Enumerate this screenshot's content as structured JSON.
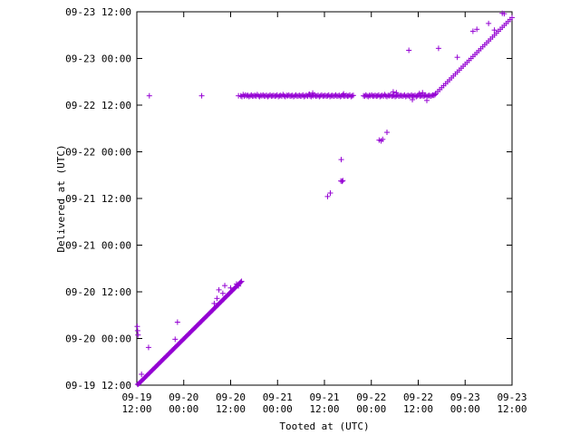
{
  "chart_data": {
    "type": "scatter",
    "title": "",
    "xlabel": "Tooted at (UTC)",
    "ylabel": "Delivered at (UTC)",
    "x_unit": "hours since 09-19 12:00 UTC",
    "y_unit": "hours since 09-19 12:00 UTC",
    "xlim": [
      0,
      96
    ],
    "ylim": [
      0,
      96
    ],
    "grid": false,
    "legend": "none",
    "marker": "+",
    "color": "#9400d3",
    "x_ticks": [
      {
        "value": 0,
        "line1": "09-19",
        "line2": "12:00"
      },
      {
        "value": 12,
        "line1": "09-20",
        "line2": "00:00"
      },
      {
        "value": 24,
        "line1": "09-20",
        "line2": "12:00"
      },
      {
        "value": 36,
        "line1": "09-21",
        "line2": "00:00"
      },
      {
        "value": 48,
        "line1": "09-21",
        "line2": "12:00"
      },
      {
        "value": 60,
        "line1": "09-22",
        "line2": "00:00"
      },
      {
        "value": 72,
        "line1": "09-22",
        "line2": "12:00"
      },
      {
        "value": 84,
        "line1": "09-23",
        "line2": "00:00"
      },
      {
        "value": 96,
        "line1": "09-23",
        "line2": "12:00"
      }
    ],
    "y_ticks": [
      {
        "value": 0,
        "label": "09-19 12:00"
      },
      {
        "value": 12,
        "label": "09-20 00:00"
      },
      {
        "value": 24,
        "label": "09-20 12:00"
      },
      {
        "value": 36,
        "label": "09-21 00:00"
      },
      {
        "value": 48,
        "label": "09-21 12:00"
      },
      {
        "value": 60,
        "label": "09-22 00:00"
      },
      {
        "value": 72,
        "label": "09-22 12:00"
      },
      {
        "value": 84,
        "label": "09-23 00:00"
      },
      {
        "value": 96,
        "label": "09-23 12:00"
      }
    ],
    "points": [
      [
        0.2,
        0.2
      ],
      [
        0.4,
        0.3
      ],
      [
        0.6,
        0.5
      ],
      [
        0.8,
        0.7
      ],
      [
        1.0,
        0.9
      ],
      [
        1.2,
        1.1
      ],
      [
        1.4,
        1.3
      ],
      [
        1.6,
        1.5
      ],
      [
        1.8,
        1.7
      ],
      [
        2.0,
        1.9
      ],
      [
        2.2,
        2.1
      ],
      [
        2.4,
        2.3
      ],
      [
        2.6,
        2.5
      ],
      [
        2.8,
        2.7
      ],
      [
        3.0,
        2.9
      ],
      [
        3.2,
        3.1
      ],
      [
        3.4,
        3.3
      ],
      [
        3.6,
        3.5
      ],
      [
        3.8,
        3.7
      ],
      [
        4.0,
        3.9
      ],
      [
        4.2,
        4.1
      ],
      [
        4.4,
        4.3
      ],
      [
        4.6,
        4.5
      ],
      [
        4.8,
        4.7
      ],
      [
        5.0,
        4.9
      ],
      [
        5.2,
        5.1
      ],
      [
        5.4,
        5.3
      ],
      [
        5.6,
        5.5
      ],
      [
        5.8,
        5.7
      ],
      [
        6.0,
        5.9
      ],
      [
        6.2,
        6.1
      ],
      [
        6.4,
        6.3
      ],
      [
        6.6,
        6.5
      ],
      [
        6.8,
        6.7
      ],
      [
        7.0,
        6.9
      ],
      [
        7.2,
        7.1
      ],
      [
        7.4,
        7.3
      ],
      [
        7.6,
        7.5
      ],
      [
        7.8,
        7.7
      ],
      [
        8.0,
        7.9
      ],
      [
        8.2,
        8.1
      ],
      [
        8.4,
        8.3
      ],
      [
        8.6,
        8.5
      ],
      [
        8.8,
        8.7
      ],
      [
        9.0,
        8.9
      ],
      [
        9.2,
        9.1
      ],
      [
        9.4,
        9.3
      ],
      [
        9.6,
        9.5
      ],
      [
        9.8,
        9.7
      ],
      [
        10.0,
        9.9
      ],
      [
        10.2,
        10.1
      ],
      [
        10.4,
        10.3
      ],
      [
        10.6,
        10.5
      ],
      [
        10.8,
        10.7
      ],
      [
        11.0,
        10.9
      ],
      [
        11.2,
        11.1
      ],
      [
        11.4,
        11.3
      ],
      [
        11.6,
        11.5
      ],
      [
        11.8,
        11.7
      ],
      [
        12.0,
        11.9
      ],
      [
        12.2,
        12.1
      ],
      [
        12.4,
        12.3
      ],
      [
        12.6,
        12.5
      ],
      [
        12.8,
        12.7
      ],
      [
        13.0,
        12.9
      ],
      [
        13.2,
        13.1
      ],
      [
        13.4,
        13.3
      ],
      [
        13.6,
        13.5
      ],
      [
        13.8,
        13.7
      ],
      [
        14.0,
        13.9
      ],
      [
        14.2,
        14.1
      ],
      [
        14.4,
        14.3
      ],
      [
        14.6,
        14.5
      ],
      [
        14.8,
        14.7
      ],
      [
        15.0,
        14.9
      ],
      [
        15.2,
        15.1
      ],
      [
        15.4,
        15.3
      ],
      [
        15.6,
        15.5
      ],
      [
        15.8,
        15.7
      ],
      [
        16.0,
        15.9
      ],
      [
        16.2,
        16.1
      ],
      [
        16.4,
        16.3
      ],
      [
        16.6,
        16.5
      ],
      [
        16.8,
        16.7
      ],
      [
        17.0,
        16.9
      ],
      [
        17.2,
        17.1
      ],
      [
        17.4,
        17.3
      ],
      [
        17.6,
        17.5
      ],
      [
        17.8,
        17.7
      ],
      [
        18.0,
        17.9
      ],
      [
        18.2,
        18.1
      ],
      [
        18.4,
        18.3
      ],
      [
        18.6,
        18.5
      ],
      [
        18.8,
        18.7
      ],
      [
        19.0,
        18.9
      ],
      [
        19.2,
        19.1
      ],
      [
        19.4,
        19.3
      ],
      [
        19.6,
        19.5
      ],
      [
        19.8,
        19.7
      ],
      [
        20.0,
        19.9
      ],
      [
        20.2,
        20.1
      ],
      [
        20.4,
        20.3
      ],
      [
        20.6,
        20.5
      ],
      [
        20.8,
        20.7
      ],
      [
        21.0,
        20.9
      ],
      [
        21.2,
        21.1
      ],
      [
        21.4,
        21.3
      ],
      [
        21.6,
        21.5
      ],
      [
        21.8,
        21.7
      ],
      [
        22.0,
        21.9
      ],
      [
        22.2,
        22.1
      ],
      [
        22.4,
        22.3
      ],
      [
        22.6,
        22.5
      ],
      [
        22.8,
        22.7
      ],
      [
        23.0,
        22.9
      ],
      [
        23.2,
        23.1
      ],
      [
        23.4,
        23.3
      ],
      [
        23.6,
        23.5
      ],
      [
        23.8,
        23.7
      ],
      [
        24.0,
        23.9
      ],
      [
        24.2,
        24.1
      ],
      [
        24.4,
        24.3
      ],
      [
        24.6,
        24.5
      ],
      [
        24.8,
        24.7
      ],
      [
        25.0,
        24.9
      ],
      [
        25.2,
        25.1
      ],
      [
        25.4,
        25.3
      ],
      [
        25.6,
        25.5
      ],
      [
        25.8,
        25.7
      ],
      [
        26.0,
        25.9
      ],
      [
        26.2,
        26.1
      ],
      [
        26.4,
        26.3
      ],
      [
        26.6,
        26.5
      ],
      [
        26.8,
        26.7
      ],
      [
        0.1,
        15.1
      ],
      [
        0.2,
        14.0
      ],
      [
        0.3,
        12.9
      ],
      [
        1.2,
        2.8
      ],
      [
        3.0,
        9.7
      ],
      [
        9.8,
        11.8
      ],
      [
        10.4,
        16.2
      ],
      [
        19.8,
        21.0
      ],
      [
        20.5,
        22.3
      ],
      [
        21.0,
        24.5
      ],
      [
        22.0,
        23.6
      ],
      [
        22.5,
        25.6
      ],
      [
        24.0,
        25.0
      ],
      [
        25.5,
        26.0
      ],
      [
        26.0,
        25.5
      ],
      [
        3.2,
        74.4
      ],
      [
        16.6,
        74.4
      ],
      [
        26.0,
        74.4
      ],
      [
        26.6,
        74.4
      ],
      [
        26.9,
        74.2
      ],
      [
        27.2,
        74.7
      ],
      [
        27.5,
        74.3
      ],
      [
        27.8,
        74.6
      ],
      [
        28.1,
        74.4
      ],
      [
        28.4,
        74.5
      ],
      [
        28.7,
        74.2
      ],
      [
        29.0,
        74.4
      ],
      [
        29.3,
        74.6
      ],
      [
        29.6,
        74.3
      ],
      [
        29.9,
        74.4
      ],
      [
        30.2,
        74.5
      ],
      [
        30.5,
        74.3
      ],
      [
        30.8,
        74.7
      ],
      [
        31.1,
        74.4
      ],
      [
        31.4,
        74.2
      ],
      [
        31.7,
        74.5
      ],
      [
        32.0,
        74.4
      ],
      [
        32.3,
        74.6
      ],
      [
        32.6,
        74.3
      ],
      [
        32.9,
        74.4
      ],
      [
        33.2,
        74.5
      ],
      [
        33.5,
        74.2
      ],
      [
        33.8,
        74.4
      ],
      [
        34.1,
        74.6
      ],
      [
        34.4,
        74.3
      ],
      [
        34.7,
        74.4
      ],
      [
        35.0,
        74.5
      ],
      [
        35.3,
        74.3
      ],
      [
        35.6,
        74.4
      ],
      [
        35.9,
        74.6
      ],
      [
        36.2,
        74.2
      ],
      [
        36.5,
        74.4
      ],
      [
        36.8,
        74.5
      ],
      [
        37.1,
        74.3
      ],
      [
        37.4,
        74.7
      ],
      [
        37.7,
        74.4
      ],
      [
        38.0,
        74.2
      ],
      [
        38.3,
        74.5
      ],
      [
        38.6,
        74.4
      ],
      [
        38.9,
        74.6
      ],
      [
        39.2,
        74.3
      ],
      [
        39.5,
        74.4
      ],
      [
        39.8,
        74.5
      ],
      [
        40.1,
        74.2
      ],
      [
        40.4,
        74.4
      ],
      [
        40.7,
        74.6
      ],
      [
        41.0,
        74.3
      ],
      [
        41.3,
        74.4
      ],
      [
        41.6,
        74.5
      ],
      [
        41.9,
        74.3
      ],
      [
        42.2,
        74.4
      ],
      [
        42.5,
        74.6
      ],
      [
        42.8,
        74.2
      ],
      [
        43.1,
        74.4
      ],
      [
        43.4,
        74.5
      ],
      [
        43.7,
        74.3
      ],
      [
        44.0,
        74.7
      ],
      [
        44.3,
        74.4
      ],
      [
        44.6,
        74.2
      ],
      [
        44.9,
        74.5
      ],
      [
        45.2,
        74.4
      ],
      [
        45.5,
        74.6
      ],
      [
        45.8,
        74.3
      ],
      [
        46.1,
        74.4
      ],
      [
        46.4,
        74.5
      ],
      [
        46.7,
        74.2
      ],
      [
        47.0,
        74.4
      ],
      [
        47.3,
        74.6
      ],
      [
        47.6,
        74.3
      ],
      [
        47.9,
        74.4
      ],
      [
        48.2,
        74.5
      ],
      [
        48.5,
        74.3
      ],
      [
        48.8,
        74.4
      ],
      [
        49.1,
        74.6
      ],
      [
        49.4,
        74.2
      ],
      [
        49.7,
        74.4
      ],
      [
        50.0,
        74.5
      ],
      [
        50.3,
        74.3
      ],
      [
        50.6,
        74.4
      ],
      [
        50.9,
        74.6
      ],
      [
        51.2,
        74.3
      ],
      [
        51.5,
        74.4
      ],
      [
        51.8,
        74.5
      ],
      [
        52.1,
        74.2
      ],
      [
        52.4,
        74.4
      ],
      [
        52.7,
        74.6
      ],
      [
        53.0,
        74.3
      ],
      [
        53.3,
        74.4
      ],
      [
        53.6,
        74.5
      ],
      [
        53.9,
        74.3
      ],
      [
        54.2,
        74.4
      ],
      [
        54.5,
        74.6
      ],
      [
        54.8,
        74.2
      ],
      [
        55.1,
        74.4
      ],
      [
        55.4,
        74.5
      ],
      [
        58.0,
        74.4
      ],
      [
        58.3,
        74.3
      ],
      [
        58.6,
        74.6
      ],
      [
        58.9,
        74.4
      ],
      [
        59.2,
        74.2
      ],
      [
        59.5,
        74.5
      ],
      [
        59.8,
        74.4
      ],
      [
        60.1,
        74.6
      ],
      [
        60.4,
        74.3
      ],
      [
        60.7,
        74.4
      ],
      [
        61.0,
        74.5
      ],
      [
        61.3,
        74.3
      ],
      [
        61.6,
        74.4
      ],
      [
        61.9,
        74.6
      ],
      [
        62.2,
        74.2
      ],
      [
        62.5,
        74.4
      ],
      [
        62.8,
        74.5
      ],
      [
        63.1,
        74.3
      ],
      [
        63.4,
        74.7
      ],
      [
        63.7,
        74.4
      ],
      [
        64.0,
        74.2
      ],
      [
        64.3,
        74.5
      ],
      [
        64.6,
        74.4
      ],
      [
        64.9,
        74.6
      ],
      [
        65.2,
        74.3
      ],
      [
        65.5,
        74.4
      ],
      [
        65.8,
        74.5
      ],
      [
        66.1,
        74.2
      ],
      [
        66.4,
        74.4
      ],
      [
        66.7,
        74.6
      ],
      [
        67.0,
        74.3
      ],
      [
        67.3,
        74.4
      ],
      [
        67.6,
        74.5
      ],
      [
        67.9,
        74.3
      ],
      [
        68.2,
        74.4
      ],
      [
        68.5,
        74.6
      ],
      [
        68.8,
        74.2
      ],
      [
        69.1,
        74.4
      ],
      [
        69.4,
        74.5
      ],
      [
        69.7,
        74.3
      ],
      [
        70.0,
        74.4
      ],
      [
        70.3,
        74.6
      ],
      [
        70.6,
        74.3
      ],
      [
        70.9,
        74.4
      ],
      [
        71.2,
        74.5
      ],
      [
        71.5,
        74.2
      ],
      [
        71.8,
        74.4
      ],
      [
        72.1,
        74.6
      ],
      [
        72.4,
        74.3
      ],
      [
        72.7,
        74.4
      ],
      [
        73.0,
        74.5
      ],
      [
        73.3,
        74.3
      ],
      [
        73.6,
        74.4
      ],
      [
        73.9,
        74.6
      ],
      [
        74.2,
        74.2
      ],
      [
        74.5,
        74.4
      ],
      [
        74.8,
        74.5
      ],
      [
        75.1,
        74.3
      ],
      [
        75.4,
        74.4
      ],
      [
        75.7,
        74.6
      ],
      [
        76.0,
        74.5
      ],
      [
        76.3,
        74.7
      ],
      [
        44.2,
        74.8
      ],
      [
        45.0,
        75.1
      ],
      [
        52.9,
        74.9
      ],
      [
        65.6,
        75.4
      ],
      [
        66.4,
        75.2
      ],
      [
        72.3,
        75.0
      ],
      [
        70.5,
        73.4
      ],
      [
        74.2,
        73.2
      ],
      [
        73.1,
        75.2
      ],
      [
        48.8,
        48.5
      ],
      [
        49.5,
        49.4
      ],
      [
        52.2,
        52.5
      ],
      [
        52.5,
        52.4
      ],
      [
        52.7,
        52.6
      ],
      [
        52.3,
        58.0
      ],
      [
        62.0,
        63.0
      ],
      [
        62.5,
        62.8
      ],
      [
        62.9,
        63.2
      ],
      [
        64.0,
        65.0
      ],
      [
        69.6,
        86.1
      ],
      [
        77.2,
        86.6
      ],
      [
        76.5,
        75.0
      ],
      [
        77.0,
        75.5
      ],
      [
        77.5,
        76.0
      ],
      [
        78.0,
        76.5
      ],
      [
        78.5,
        77.0
      ],
      [
        79.0,
        77.5
      ],
      [
        79.5,
        78.0
      ],
      [
        80.0,
        78.5
      ],
      [
        80.5,
        79.0
      ],
      [
        81.0,
        79.5
      ],
      [
        81.5,
        80.0
      ],
      [
        82.0,
        80.5
      ],
      [
        82.5,
        81.0
      ],
      [
        83.0,
        81.5
      ],
      [
        83.5,
        82.0
      ],
      [
        84.0,
        82.5
      ],
      [
        84.5,
        83.0
      ],
      [
        85.0,
        83.5
      ],
      [
        85.5,
        84.0
      ],
      [
        86.0,
        84.5
      ],
      [
        86.5,
        85.0
      ],
      [
        87.0,
        85.5
      ],
      [
        87.5,
        86.0
      ],
      [
        88.0,
        86.5
      ],
      [
        88.5,
        87.0
      ],
      [
        89.0,
        87.5
      ],
      [
        89.5,
        88.0
      ],
      [
        90.0,
        88.5
      ],
      [
        90.5,
        89.0
      ],
      [
        91.0,
        89.5
      ],
      [
        91.5,
        90.0
      ],
      [
        92.0,
        90.5
      ],
      [
        92.5,
        91.0
      ],
      [
        93.0,
        91.5
      ],
      [
        93.5,
        92.0
      ],
      [
        94.0,
        92.5
      ],
      [
        94.5,
        93.0
      ],
      [
        95.0,
        93.5
      ],
      [
        95.5,
        94.0
      ],
      [
        96.0,
        94.5
      ],
      [
        82.0,
        84.3
      ],
      [
        86.0,
        91.0
      ],
      [
        87.0,
        91.5
      ],
      [
        90.0,
        93.0
      ],
      [
        91.5,
        91.3
      ],
      [
        93.5,
        95.6
      ],
      [
        94.0,
        95.5
      ]
    ]
  }
}
